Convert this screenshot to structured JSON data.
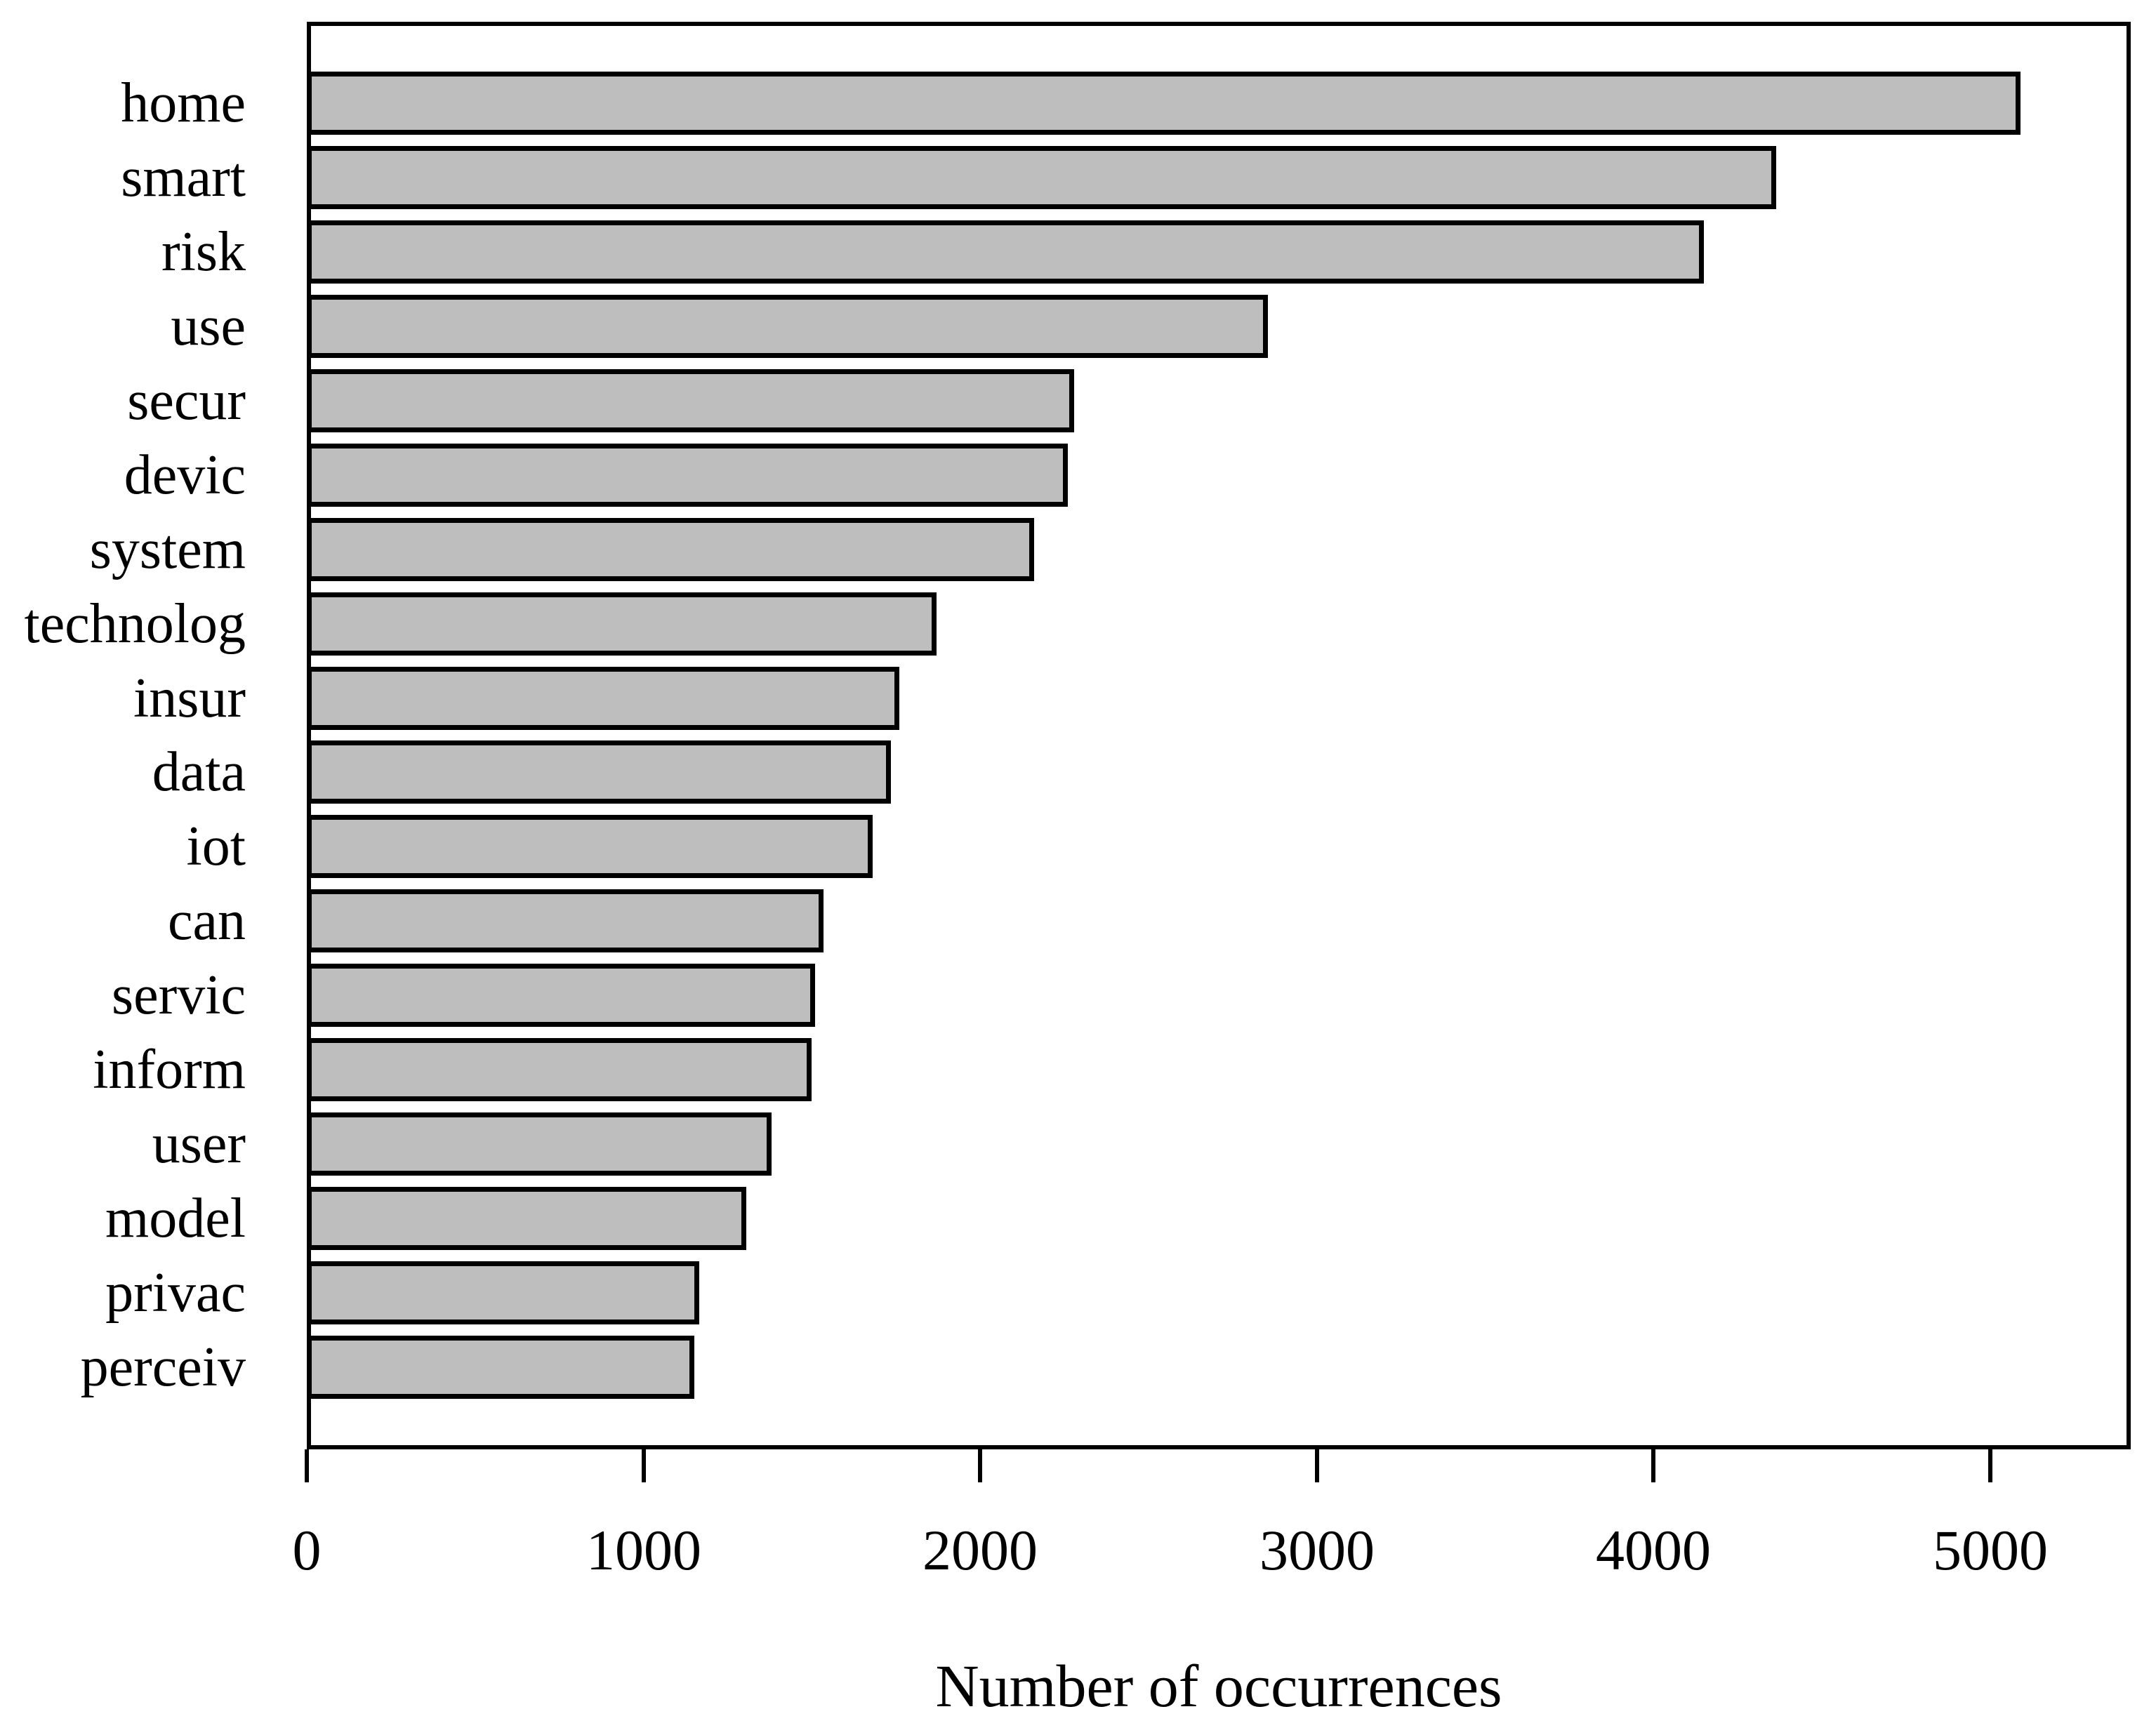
{
  "chart_data": {
    "type": "bar",
    "orientation": "horizontal",
    "title": "",
    "xlabel": "Number of occurrences",
    "ylabel": "",
    "categories": [
      "home",
      "smart",
      "risk",
      "use",
      "secur",
      "devic",
      "system",
      "technolog",
      "insur",
      "data",
      "iot",
      "can",
      "servic",
      "inform",
      "user",
      "model",
      "privac",
      "perceiv"
    ],
    "values": [
      5090,
      4365,
      4150,
      2855,
      2280,
      2260,
      2160,
      1870,
      1760,
      1735,
      1680,
      1535,
      1510,
      1500,
      1380,
      1305,
      1165,
      1150
    ],
    "x_ticks": [
      0,
      1000,
      2000,
      3000,
      4000,
      5000
    ],
    "xlim": [
      0,
      5417
    ],
    "grid": false,
    "legend": false,
    "bar_fill": "#BEBEBE",
    "bar_border": "#000000",
    "frame_color": "#000000",
    "background": "#FFFFFF"
  }
}
